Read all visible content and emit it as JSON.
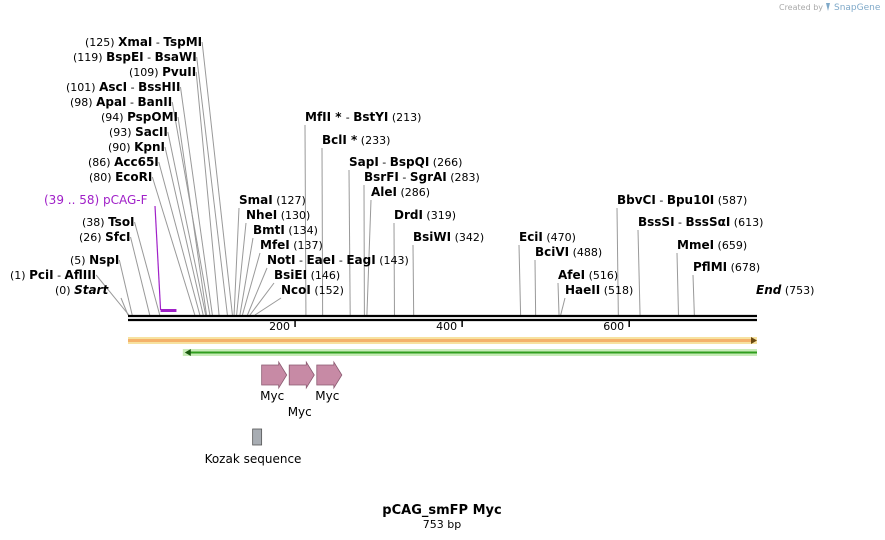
{
  "watermark": {
    "created_by": "Created by",
    "brand": "SnapGene"
  },
  "map": {
    "title": "pCAG_smFP Myc",
    "length_label": "753 bp",
    "length_bp": 753,
    "ticks": [
      {
        "bp": 200,
        "label": "200"
      },
      {
        "bp": 400,
        "label": "400"
      },
      {
        "bp": 600,
        "label": "600"
      }
    ]
  },
  "sites": [
    {
      "pos": "(125)",
      "parts": [
        {
          "t": "XmaI",
          "b": 1
        },
        {
          "t": "  -  "
        },
        {
          "t": "TspMI",
          "b": 1
        }
      ],
      "bp": [
        125,
        137
      ]
    },
    {
      "pos": "(119)",
      "parts": [
        {
          "t": "BspEI",
          "b": 1
        },
        {
          "t": "  -  "
        },
        {
          "t": "BsaWI",
          "b": 1
        }
      ],
      "bp": [
        119,
        121
      ]
    },
    {
      "pos": "(109)",
      "parts": [
        {
          "t": "PvuII",
          "b": 1
        }
      ],
      "bp": [
        109
      ]
    },
    {
      "pos": "(101)",
      "parts": [
        {
          "t": "AscI",
          "b": 1
        },
        {
          "t": "  -  "
        },
        {
          "t": "BssHII",
          "b": 1
        }
      ],
      "bp": [
        101,
        103
      ]
    },
    {
      "pos": "(98)",
      "parts": [
        {
          "t": "ApaI",
          "b": 1
        },
        {
          "t": "  -  "
        },
        {
          "t": "BanII",
          "b": 1
        }
      ],
      "bp": [
        98
      ]
    },
    {
      "pos": "(94)",
      "parts": [
        {
          "t": "PspOMI",
          "b": 1
        }
      ],
      "bp": [
        94
      ]
    },
    {
      "pos": "(93)",
      "parts": [
        {
          "t": "SacII",
          "b": 1
        }
      ],
      "bp": [
        93
      ]
    },
    {
      "pos": "(90)",
      "parts": [
        {
          "t": "KpnI",
          "b": 1
        }
      ],
      "bp": [
        90
      ]
    },
    {
      "pos": "(86)",
      "parts": [
        {
          "t": "Acc65I",
          "b": 1
        }
      ],
      "bp": [
        86
      ]
    },
    {
      "pos": "(80)",
      "parts": [
        {
          "t": "EcoRI",
          "b": 1
        }
      ],
      "bp": [
        80
      ]
    },
    {
      "pos": "(38)",
      "parts": [
        {
          "t": "TsoI",
          "b": 1
        }
      ],
      "bp": [
        38
      ]
    },
    {
      "pos": "(26)",
      "parts": [
        {
          "t": "SfcI",
          "b": 1
        }
      ],
      "bp": [
        26
      ]
    },
    {
      "pos": "(5)",
      "parts": [
        {
          "t": "NspI",
          "b": 1
        }
      ],
      "bp": [
        5
      ]
    },
    {
      "pos": "(1)",
      "parts": [
        {
          "t": "PciI",
          "b": 1
        },
        {
          "t": "  -  "
        },
        {
          "t": "AflIII",
          "b": 1
        }
      ],
      "bp": [
        1
      ]
    },
    {
      "pos": "(127)",
      "parts": [
        {
          "t": "SmaI",
          "b": 1
        }
      ],
      "bp": [
        127
      ]
    },
    {
      "pos": "(130)",
      "parts": [
        {
          "t": "NheI",
          "b": 1
        }
      ],
      "bp": [
        130
      ]
    },
    {
      "pos": "(134)",
      "parts": [
        {
          "t": "BmtI",
          "b": 1
        }
      ],
      "bp": [
        134
      ]
    },
    {
      "pos": "(137)",
      "parts": [
        {
          "t": "MfeI",
          "b": 1
        }
      ],
      "bp": [
        137
      ]
    },
    {
      "pos": "(143)",
      "parts": [
        {
          "t": "NotI",
          "b": 1
        },
        {
          "t": "  -  "
        },
        {
          "t": "EaeI",
          "b": 1
        },
        {
          "t": "  -  "
        },
        {
          "t": "EagI",
          "b": 1
        }
      ],
      "bp": [
        143
      ]
    },
    {
      "pos": "(146)",
      "parts": [
        {
          "t": "BsiEI",
          "b": 1
        }
      ],
      "bp": [
        146
      ]
    },
    {
      "pos": "(152)",
      "parts": [
        {
          "t": "NcoI",
          "b": 1
        }
      ],
      "bp": [
        152
      ]
    },
    {
      "pos": "(213)",
      "parts": [
        {
          "t": "MfII",
          "b": 1
        },
        {
          "t": " * ",
          "b": 1
        },
        {
          "t": " -  "
        },
        {
          "t": "BstYI",
          "b": 1
        }
      ],
      "bp": [
        213
      ]
    },
    {
      "pos": "(233)",
      "parts": [
        {
          "t": "BclI",
          "b": 1
        },
        {
          "t": " *",
          "b": 1
        }
      ],
      "bp": [
        233
      ]
    },
    {
      "pos": "(266)",
      "parts": [
        {
          "t": "SapI",
          "b": 1
        },
        {
          "t": "  -  "
        },
        {
          "t": "BspQI",
          "b": 1
        }
      ],
      "bp": [
        266
      ]
    },
    {
      "pos": "(283)",
      "parts": [
        {
          "t": "BsrFI",
          "b": 1
        },
        {
          "t": "  -  "
        },
        {
          "t": "SgrAI",
          "b": 1
        }
      ],
      "bp": [
        283
      ]
    },
    {
      "pos": "(286)",
      "parts": [
        {
          "t": "AleI",
          "b": 1
        }
      ],
      "bp": [
        286
      ]
    },
    {
      "pos": "(319)",
      "parts": [
        {
          "t": "DrdI",
          "b": 1
        }
      ],
      "bp": [
        319
      ]
    },
    {
      "pos": "(342)",
      "parts": [
        {
          "t": "BsiWI",
          "b": 1
        }
      ],
      "bp": [
        342
      ]
    },
    {
      "pos": "(470)",
      "parts": [
        {
          "t": "EciI",
          "b": 1
        }
      ],
      "bp": [
        470
      ]
    },
    {
      "pos": "(488)",
      "parts": [
        {
          "t": "BciVI",
          "b": 1
        }
      ],
      "bp": [
        488
      ]
    },
    {
      "pos": "(516)",
      "parts": [
        {
          "t": "AfeI",
          "b": 1
        }
      ],
      "bp": [
        516
      ]
    },
    {
      "pos": "(518)",
      "parts": [
        {
          "t": "HaeII",
          "b": 1
        }
      ],
      "bp": [
        518
      ]
    },
    {
      "pos": "(587)",
      "parts": [
        {
          "t": "BbvCI",
          "b": 1
        },
        {
          "t": "  -  "
        },
        {
          "t": "Bpu10I",
          "b": 1
        }
      ],
      "bp": [
        587
      ]
    },
    {
      "pos": "(613)",
      "parts": [
        {
          "t": "BssSI",
          "b": 1
        },
        {
          "t": "  -  "
        },
        {
          "t": "BssSαI",
          "b": 1
        }
      ],
      "bp": [
        613
      ]
    },
    {
      "pos": "(659)",
      "parts": [
        {
          "t": "MmeI",
          "b": 1
        }
      ],
      "bp": [
        659
      ]
    },
    {
      "pos": "(678)",
      "parts": [
        {
          "t": "PflMI",
          "b": 1
        }
      ],
      "bp": [
        678
      ]
    }
  ],
  "ends": [
    {
      "pos": "(0)",
      "label": "Start",
      "bp": 0
    },
    {
      "pos": "(753)",
      "label": "End",
      "bp": 753
    }
  ],
  "primer": {
    "pos": "(39 .. 58)",
    "name": "pCAG-F",
    "start": 39,
    "end": 58,
    "color": "#a020c8"
  },
  "features": {
    "forward_bar": {
      "start": 0,
      "end": 753,
      "fill": "#f4b26b",
      "border": "#f7e2a0"
    },
    "reverse_bar": {
      "start": 68,
      "end": 753,
      "fill": "#2f9e1e",
      "border": "#c8ecb8"
    },
    "myc_arrows": [
      {
        "label": "Myc",
        "start": 160,
        "end": 190
      },
      {
        "label": "Myc",
        "start": 193,
        "end": 223
      },
      {
        "label": "Myc",
        "start": 226,
        "end": 256
      }
    ],
    "myc_color": "#c78aa5",
    "kozak": {
      "label": "Kozak sequence",
      "bp": 154,
      "color": "#a8adb3"
    }
  }
}
